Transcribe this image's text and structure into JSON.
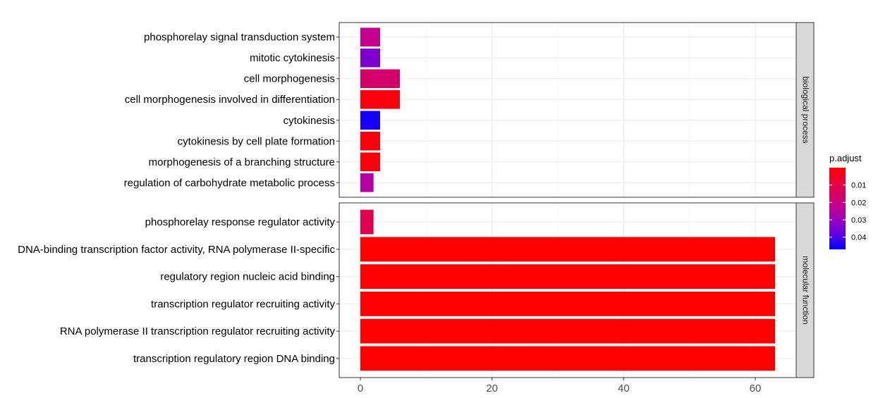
{
  "chart_data": {
    "type": "bar",
    "orientation": "horizontal",
    "title": "",
    "xlabel": "",
    "ylabel": "",
    "xlim": [
      0,
      66
    ],
    "x_ticks": [
      0,
      20,
      40,
      60
    ],
    "grid": true,
    "facets": [
      {
        "name": "biological process",
        "categories": [
          "phosphorelay signal transduction system",
          "mitotic cytokinesis",
          "cell morphogenesis",
          "cell morphogenesis involved in differentiation",
          "cytokinesis",
          "cytokinesis by cell plate formation",
          "morphogenesis of a branching structure",
          "regulation of carbohydrate metabolic process"
        ],
        "values": [
          3,
          3,
          6,
          6,
          3,
          3,
          3,
          2
        ],
        "p_adjust": [
          0.022,
          0.034,
          0.016,
          0.002,
          0.045,
          0.002,
          0.002,
          0.025
        ]
      },
      {
        "name": "molecular function",
        "categories": [
          "phosphorelay response regulator activity",
          "DNA-binding transcription factor activity, RNA polymerase II-specific",
          "regulatory region nucleic acid binding",
          "transcription regulator recruiting activity",
          "RNA polymerase II transcription regulator recruiting activity",
          "transcription regulatory region DNA binding"
        ],
        "values": [
          2,
          63,
          63,
          63,
          63,
          63
        ],
        "p_adjust": [
          0.012,
          0.0001,
          0.0001,
          0.0001,
          0.0001,
          0.0001
        ]
      }
    ],
    "color_legend": {
      "title": "p.adjust",
      "placement": "right",
      "range": [
        0.0,
        0.047
      ],
      "ticks": [
        0.01,
        0.02,
        0.03,
        0.04
      ],
      "tick_labels": [
        "0.01",
        "0.02",
        "0.03",
        "0.04"
      ],
      "low_color": "#ff0000",
      "high_color": "#0000ff"
    }
  }
}
